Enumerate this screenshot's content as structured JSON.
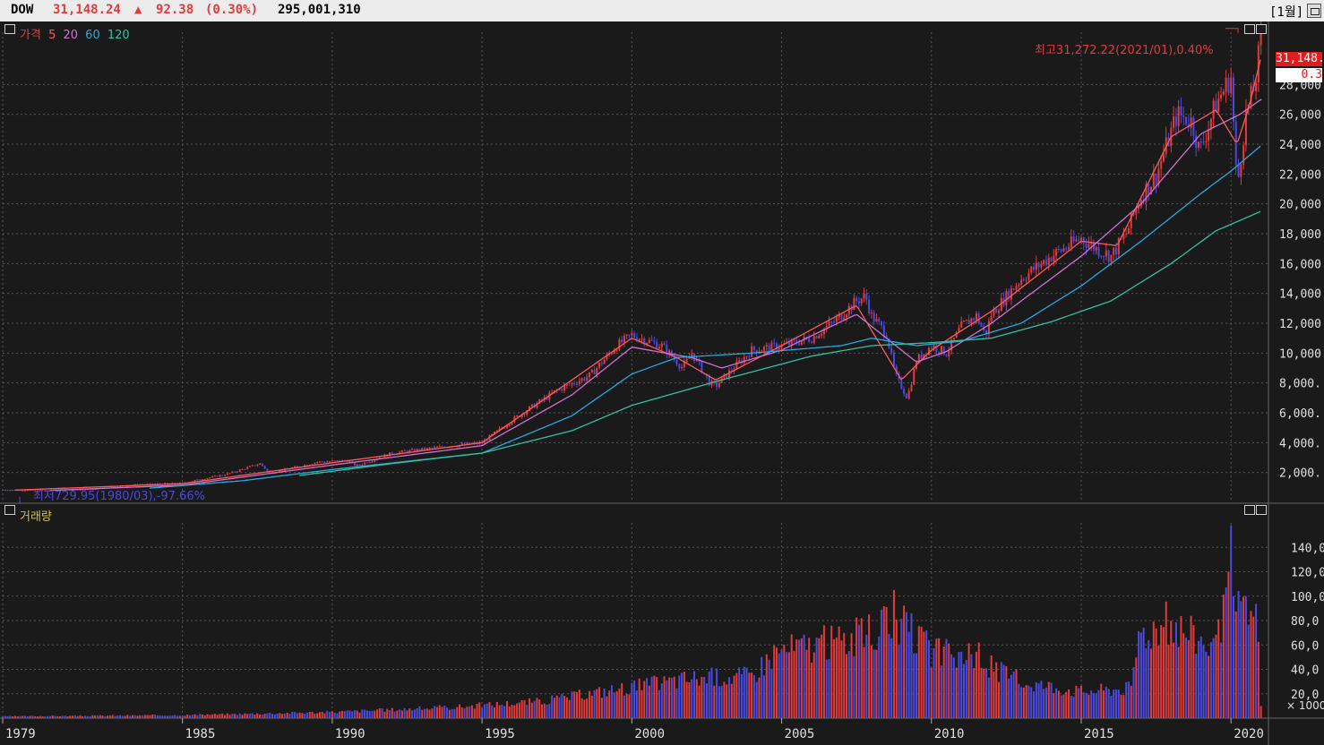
{
  "header": {
    "symbol": "DOW",
    "price": "31,148.24",
    "arrow": "▲",
    "change": "92.38",
    "change_pct": "(0.30%)",
    "volume": "295,001,310",
    "period": "[1월]"
  },
  "colors": {
    "up": "#e23b3b",
    "down": "#4a4ae0",
    "ma5": "#ff5a5a",
    "ma20": "#d070d0",
    "ma60": "#2aa8e0",
    "ma120": "#35c0a0",
    "volume_legend": "#d9c23a",
    "grid": "#555555",
    "axis_text": "#e0e0e0"
  },
  "price_panel": {
    "legend": {
      "price": "가격",
      "ma5": "5",
      "ma20": "20",
      "ma60": "60",
      "ma120": "120"
    },
    "high_annotation": "최고31,272.22(2021/01),0.40%",
    "low_annotation": "최저729.95(1980/03),-97.66%",
    "last_price_tag": "31,148.",
    "last_change_tag": "0.3"
  },
  "volume_panel": {
    "legend": "거래량",
    "unit": "× 1000"
  },
  "chart_data": [
    {
      "type": "candlestick",
      "title": "",
      "x_unit": "year",
      "ylim": [
        0,
        31500
      ],
      "y_ticks": [
        2000,
        4000,
        6000,
        8000,
        10000,
        12000,
        14000,
        16000,
        18000,
        20000,
        22000,
        24000,
        26000,
        28000
      ],
      "y_tick_labels": [
        "2,000.",
        "4,000.",
        "6,000.",
        "8,000.",
        "10,000.",
        "12,000.",
        "14,000.",
        "16,000.",
        "18,000.",
        "20,000.",
        "22,000.",
        "24,000.",
        "26,000.",
        "28,000."
      ],
      "x_ticks": [
        1979,
        1985,
        1990,
        1995,
        2000,
        2005,
        2010,
        2015,
        2020
      ],
      "x_tick_labels": [
        "1979",
        "1985",
        "1990",
        "1995",
        "2000",
        "2005",
        "2010",
        "2015",
        "2020"
      ],
      "xlim": [
        1979.0,
        2021.25
      ],
      "price_series": {
        "x": [
          1979.0,
          1980.2,
          1982.0,
          1983.5,
          1985.0,
          1986.5,
          1987.6,
          1987.9,
          1989.5,
          1990.5,
          1990.8,
          1992.0,
          1994.0,
          1995.0,
          1996.0,
          1997.5,
          1998.6,
          1999.5,
          2000.0,
          2001.0,
          2001.7,
          2002.0,
          2002.6,
          2002.8,
          2003.5,
          2004.0,
          2005.0,
          2006.0,
          2006.8,
          2007.5,
          2007.8,
          2008.0,
          2008.5,
          2008.8,
          2009.2,
          2009.5,
          2010.0,
          2010.5,
          2011.0,
          2011.5,
          2011.8,
          2012.0,
          2013.0,
          2014.0,
          2015.0,
          2015.5,
          2016.0,
          2016.5,
          2017.0,
          2017.5,
          2018.0,
          2018.2,
          2018.7,
          2018.95,
          2019.5,
          2020.0,
          2020.2,
          2020.5,
          2020.8,
          2021.0
        ],
        "y": [
          840,
          800,
          880,
          1200,
          1300,
          1900,
          2600,
          1950,
          2700,
          2800,
          2450,
          3300,
          3800,
          4000,
          5500,
          7500,
          8500,
          10500,
          11200,
          10500,
          9000,
          10000,
          8000,
          7800,
          9200,
          10200,
          10500,
          11000,
          12200,
          13500,
          13800,
          12500,
          11300,
          8500,
          7000,
          9500,
          10500,
          10000,
          11800,
          12500,
          11200,
          12600,
          15000,
          16500,
          17700,
          17000,
          16500,
          18000,
          20500,
          21900,
          24800,
          26000,
          25500,
          23500,
          26700,
          28500,
          21000,
          26000,
          28000,
          31148
        ]
      },
      "ma_series": [
        {
          "name": "5",
          "x": [
            1979.4,
            1985.0,
            1990.0,
            1995.0,
            1998.0,
            2000.0,
            2001.5,
            2002.8,
            2005.0,
            2007.5,
            2009.0,
            2010.0,
            2012.0,
            2015.0,
            2016.2,
            2018.0,
            2019.5,
            2020.2,
            2020.6,
            2021.0
          ],
          "y": [
            820,
            1250,
            2650,
            4000,
            8200,
            11000,
            9700,
            8200,
            10500,
            13200,
            8200,
            10200,
            12800,
            17500,
            17200,
            24500,
            26300,
            24000,
            26500,
            29800
          ]
        },
        {
          "name": "20",
          "x": [
            1980.6,
            1985.0,
            1990.0,
            1995.0,
            1998.0,
            2000.0,
            2002.0,
            2003.0,
            2005.0,
            2007.5,
            2009.5,
            2010.5,
            2012.0,
            2015.0,
            2017.0,
            2019.0,
            2020.3,
            2021.0
          ],
          "y": [
            800,
            1150,
            2500,
            3800,
            7200,
            10400,
            9700,
            9000,
            10200,
            12600,
            9400,
            10100,
            12000,
            16500,
            20000,
            24700,
            26000,
            27000
          ]
        },
        {
          "name": "60",
          "x": [
            1983.9,
            1987.0,
            1990.0,
            1995.0,
            1998.0,
            2000.0,
            2001.5,
            2004.0,
            2007.0,
            2008.0,
            2009.5,
            2011.0,
            2013.0,
            2015.0,
            2017.0,
            2019.0,
            2020.0,
            2021.0
          ],
          "y": [
            950,
            1450,
            2200,
            3300,
            5800,
            8600,
            9700,
            10000,
            10500,
            11000,
            10500,
            10800,
            12000,
            14500,
            17500,
            20700,
            22200,
            23900
          ]
        },
        {
          "name": "120",
          "x": [
            1988.9,
            1992.0,
            1995.0,
            1998.0,
            2000.0,
            2003.0,
            2006.0,
            2008.0,
            2010.0,
            2012.0,
            2014.0,
            2016.0,
            2018.0,
            2019.5,
            2021.0
          ],
          "y": [
            1800,
            2600,
            3300,
            4800,
            6500,
            8200,
            9800,
            10500,
            10700,
            11000,
            12100,
            13500,
            16000,
            18200,
            19500
          ]
        }
      ],
      "high": {
        "value": 31272.22,
        "date": "2021/01",
        "pct": "0.40%"
      },
      "low": {
        "value": 729.95,
        "date": "1980/03",
        "pct": "-97.66%"
      }
    },
    {
      "type": "bar",
      "title": "",
      "unit": "× 1000",
      "ylim": [
        0,
        160000
      ],
      "y_ticks": [
        20000,
        40000,
        60000,
        80000,
        100000,
        120000,
        140000
      ],
      "y_tick_labels": [
        "20,0",
        "40,0",
        "60,0",
        "80,0",
        "100,0",
        "120,0",
        "140,0"
      ],
      "volume_profile": {
        "x": [
          1979.0,
          1985.0,
          1990.0,
          1994.0,
          1997.0,
          1999.0,
          2002.0,
          2004.0,
          2004.8,
          2006.0,
          2008.0,
          2008.8,
          2010.0,
          2011.5,
          2013.0,
          2015.0,
          2016.7,
          2016.9,
          2018.0,
          2019.5,
          2019.95,
          2020.3,
          2021.0
        ],
        "y": [
          1500,
          2500,
          5000,
          9000,
          14000,
          22000,
          33000,
          35000,
          55000,
          60000,
          68000,
          80000,
          55000,
          48000,
          30000,
          22000,
          25000,
          70000,
          78000,
          58000,
          100000,
          85000,
          80000
        ]
      },
      "notable_bars": [
        {
          "x": 2008.75,
          "y": 105000
        },
        {
          "x": 2007.9,
          "y": 85000
        },
        {
          "x": 2011.6,
          "y": 62000
        },
        {
          "x": 2020.0,
          "y": 158000
        },
        {
          "x": 2020.1,
          "y": 100000
        },
        {
          "x": 2020.5,
          "y": 100000
        },
        {
          "x": 2021.0,
          "y": 10000
        }
      ]
    }
  ]
}
